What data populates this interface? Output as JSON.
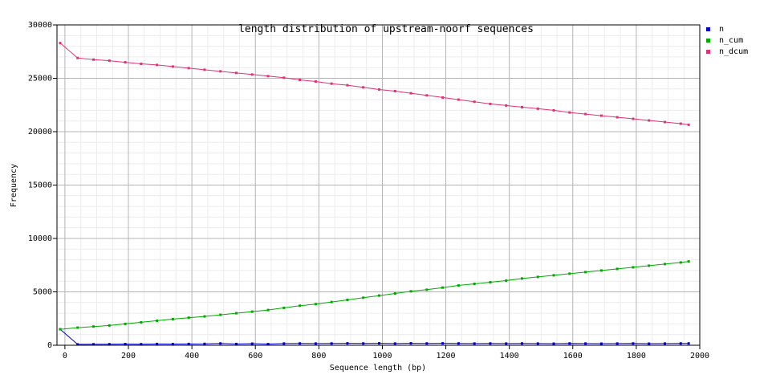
{
  "chart_data": {
    "type": "line",
    "title": "length distribution of upstream-noorf sequences",
    "xlabel": "Sequence length (bp)",
    "ylabel": "Frequency",
    "xlim": [
      -25,
      2000
    ],
    "ylim": [
      0,
      30000
    ],
    "xticks": [
      0,
      200,
      400,
      600,
      800,
      1000,
      1200,
      1400,
      1600,
      1800,
      2000
    ],
    "yticks": [
      0,
      5000,
      10000,
      15000,
      20000,
      25000,
      30000
    ],
    "grid": true,
    "legend_position": "right",
    "x": [
      -15,
      40,
      90,
      140,
      190,
      240,
      290,
      340,
      390,
      440,
      490,
      540,
      590,
      640,
      690,
      740,
      790,
      840,
      890,
      940,
      990,
      1040,
      1090,
      1140,
      1190,
      1240,
      1290,
      1340,
      1390,
      1440,
      1490,
      1540,
      1590,
      1640,
      1690,
      1740,
      1790,
      1840,
      1890,
      1940,
      1965
    ],
    "series": [
      {
        "name": "n",
        "color": "#0000cc",
        "values": [
          1500,
          80,
          90,
          100,
          110,
          100,
          120,
          110,
          120,
          130,
          170,
          120,
          150,
          110,
          160,
          170,
          160,
          170,
          180,
          170,
          180,
          160,
          180,
          170,
          180,
          170,
          160,
          170,
          160,
          170,
          160,
          150,
          170,
          160,
          150,
          160,
          170,
          150,
          160,
          170,
          170
        ]
      },
      {
        "name": "n_cum",
        "color": "#00aa00",
        "values": [
          1500,
          1650,
          1750,
          1850,
          2000,
          2150,
          2300,
          2450,
          2580,
          2700,
          2850,
          3000,
          3150,
          3300,
          3500,
          3700,
          3850,
          4050,
          4250,
          4450,
          4650,
          4850,
          5050,
          5200,
          5400,
          5600,
          5750,
          5900,
          6050,
          6250,
          6400,
          6550,
          6700,
          6850,
          7000,
          7150,
          7300,
          7450,
          7600,
          7750,
          7850
        ]
      },
      {
        "name": "n_dcum",
        "color": "#dd3377",
        "values": [
          28300,
          26900,
          26750,
          26650,
          26500,
          26350,
          26250,
          26100,
          25950,
          25800,
          25650,
          25500,
          25350,
          25200,
          25050,
          24850,
          24700,
          24500,
          24350,
          24150,
          23950,
          23800,
          23600,
          23400,
          23200,
          23000,
          22800,
          22600,
          22450,
          22300,
          22150,
          22000,
          21800,
          21650,
          21500,
          21350,
          21200,
          21050,
          20900,
          20750,
          20650
        ]
      }
    ]
  }
}
